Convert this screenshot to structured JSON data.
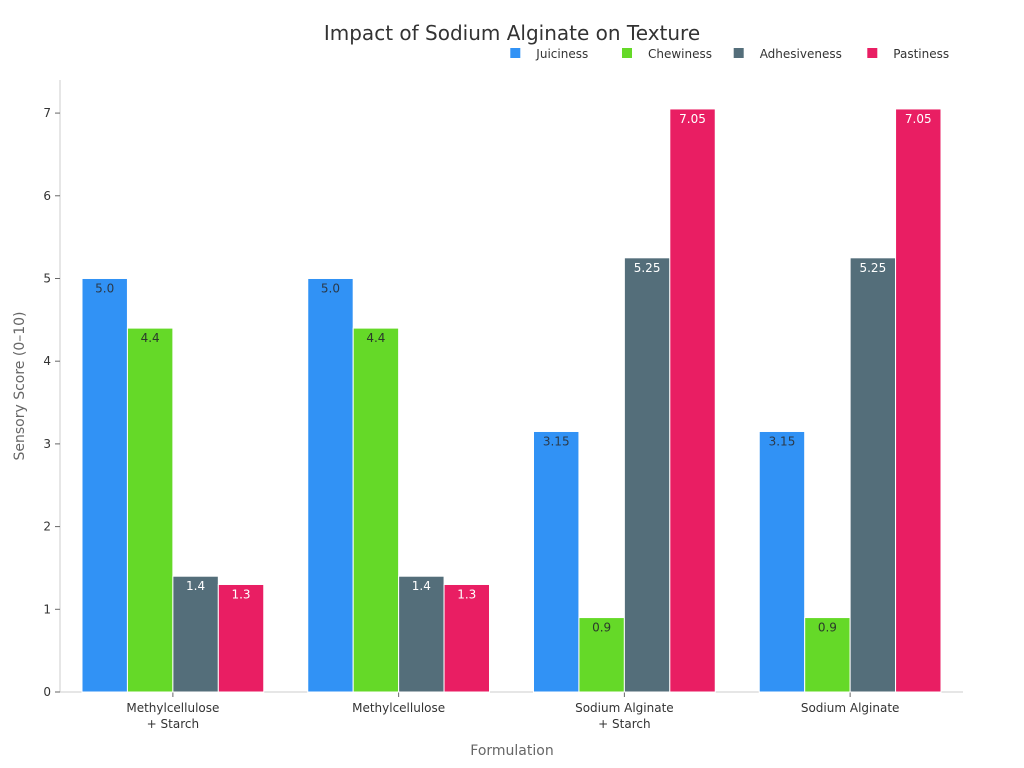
{
  "chart_data": {
    "type": "bar",
    "title": "Impact of Sodium Alginate on Texture",
    "xlabel": "Formulation",
    "ylabel": "Sensory Score (0–10)",
    "ylim": [
      0,
      7.4
    ],
    "yticks": [
      0,
      1,
      2,
      3,
      4,
      5,
      6,
      7
    ],
    "grid": false,
    "legend_position": "top-right",
    "categories": [
      [
        "Methylcellulose",
        "+ Starch"
      ],
      [
        "Methylcellulose"
      ],
      [
        "Sodium Alginate",
        "+ Starch"
      ],
      [
        "Sodium Alginate"
      ]
    ],
    "series": [
      {
        "name": "Juiciness",
        "color": "#3192f5",
        "label_color": "#2b3a4a",
        "values": [
          5.0,
          5.0,
          3.15,
          3.15
        ],
        "labels": [
          "5.0",
          "5.0",
          "3.15",
          "3.15"
        ]
      },
      {
        "name": "Chewiness",
        "color": "#65d928",
        "label_color": "#2b3a2b",
        "values": [
          4.4,
          4.4,
          0.9,
          0.9
        ],
        "labels": [
          "4.4",
          "4.4",
          "0.9",
          "0.9"
        ]
      },
      {
        "name": "Adhesiveness",
        "color": "#546e7a",
        "label_color": "#ffffff",
        "values": [
          1.4,
          1.4,
          5.25,
          5.25
        ],
        "labels": [
          "1.4",
          "1.4",
          "5.25",
          "5.25"
        ]
      },
      {
        "name": "Pastiness",
        "color": "#e91e63",
        "label_color": "#ffffff",
        "values": [
          1.3,
          1.3,
          7.05,
          7.05
        ],
        "labels": [
          "1.3",
          "1.3",
          "7.05",
          "7.05"
        ]
      }
    ]
  }
}
